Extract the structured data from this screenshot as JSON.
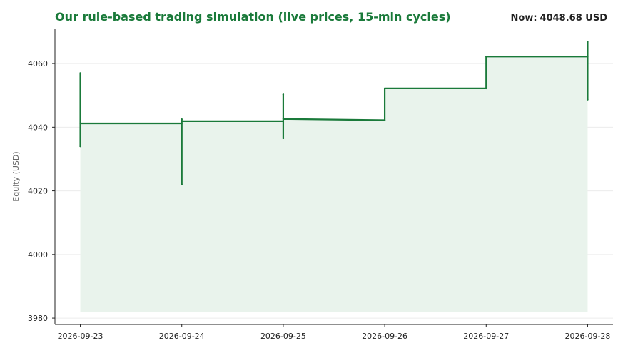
{
  "header": {
    "title": "Our rule-based trading simulation (live prices, 15-min cycles)",
    "now_prefix": "Now:",
    "now_value": "4048.68 USD"
  },
  "colors": {
    "line": "#1a7a3a",
    "fill": "#e9f3ec",
    "grid": "#ececec",
    "axis": "#222222"
  },
  "chart_data": {
    "type": "area",
    "title": "Our rule-based trading simulation (live prices, 15-min cycles)",
    "xlabel": "",
    "ylabel": "Equity (USD)",
    "xlim": [
      "2026-09-22T18:00",
      "2026-09-28T06:00"
    ],
    "ylim": [
      3978,
      4071
    ],
    "yticks": [
      3980,
      4000,
      4020,
      4040,
      4060
    ],
    "xticks": [
      "2026-09-23",
      "2026-09-24",
      "2026-09-25",
      "2026-09-26",
      "2026-09-27",
      "2026-09-28"
    ],
    "fill_base": 3982,
    "grid": "horizontal",
    "series": [
      {
        "name": "",
        "points": [
          {
            "x": "2026-09-23T00:00",
            "y": 4057
          },
          {
            "x": "2026-09-23T00:00",
            "y": 4034
          },
          {
            "x": "2026-09-23T00:00",
            "y": 4041.2
          },
          {
            "x": "2026-09-24T00:00",
            "y": 4041.2
          },
          {
            "x": "2026-09-24T00:00",
            "y": 4042.5
          },
          {
            "x": "2026-09-24T00:00",
            "y": 4022
          },
          {
            "x": "2026-09-24T00:00",
            "y": 4041.9
          },
          {
            "x": "2026-09-25T00:00",
            "y": 4041.9
          },
          {
            "x": "2026-09-25T00:00",
            "y": 4050.3
          },
          {
            "x": "2026-09-25T00:00",
            "y": 4036.5
          },
          {
            "x": "2026-09-25T00:00",
            "y": 4042.6
          },
          {
            "x": "2026-09-26T00:00",
            "y": 4042.2
          },
          {
            "x": "2026-09-26T00:00",
            "y": 4052.2
          },
          {
            "x": "2026-09-27T00:00",
            "y": 4052.2
          },
          {
            "x": "2026-09-27T00:00",
            "y": 4062.2
          },
          {
            "x": "2026-09-28T00:00",
            "y": 4062.2
          },
          {
            "x": "2026-09-28T00:00",
            "y": 4066.8
          },
          {
            "x": "2026-09-28T00:00",
            "y": 4048.68
          }
        ]
      }
    ]
  }
}
